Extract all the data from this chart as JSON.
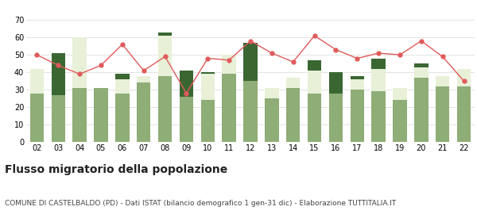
{
  "years": [
    "02",
    "03",
    "04",
    "05",
    "06",
    "07",
    "08",
    "09",
    "10",
    "11",
    "12",
    "13",
    "14",
    "15",
    "16",
    "17",
    "18",
    "19",
    "20",
    "21",
    "22"
  ],
  "iscritti_altri_comuni": [
    28,
    27,
    31,
    31,
    28,
    34,
    38,
    26,
    24,
    39,
    35,
    25,
    31,
    28,
    28,
    30,
    29,
    24,
    37,
    32,
    32
  ],
  "iscritti_estero": [
    14,
    0,
    29,
    0,
    8,
    4,
    23,
    0,
    15,
    11,
    0,
    6,
    6,
    13,
    0,
    6,
    13,
    7,
    6,
    6,
    10
  ],
  "iscritti_altri": [
    0,
    24,
    0,
    0,
    3,
    0,
    2,
    15,
    1,
    0,
    22,
    0,
    0,
    6,
    12,
    2,
    6,
    0,
    2,
    0,
    0
  ],
  "cancellati": [
    50,
    44,
    39,
    44,
    56,
    41,
    49,
    28,
    48,
    47,
    58,
    51,
    46,
    61,
    53,
    48,
    51,
    50,
    58,
    49,
    35
  ],
  "color_altri_comuni": "#8fad77",
  "color_estero": "#e8f0d8",
  "color_altri": "#3a6632",
  "color_cancellati": "#e05a5a",
  "ylim": [
    0,
    70
  ],
  "yticks": [
    0,
    10,
    20,
    30,
    40,
    50,
    60,
    70
  ],
  "title": "Flusso migratorio della popolazione",
  "subtitle": "COMUNE DI CASTELBALDO (PD) - Dati ISTAT (bilancio demografico 1 gen-31 dic) - Elaborazione TUTTITALIA.IT",
  "title_fontsize": 10,
  "subtitle_fontsize": 6.5,
  "legend_fontsize": 7.5,
  "tick_fontsize": 7,
  "bg_color": "#ffffff",
  "grid_color": "#d8d8d8"
}
